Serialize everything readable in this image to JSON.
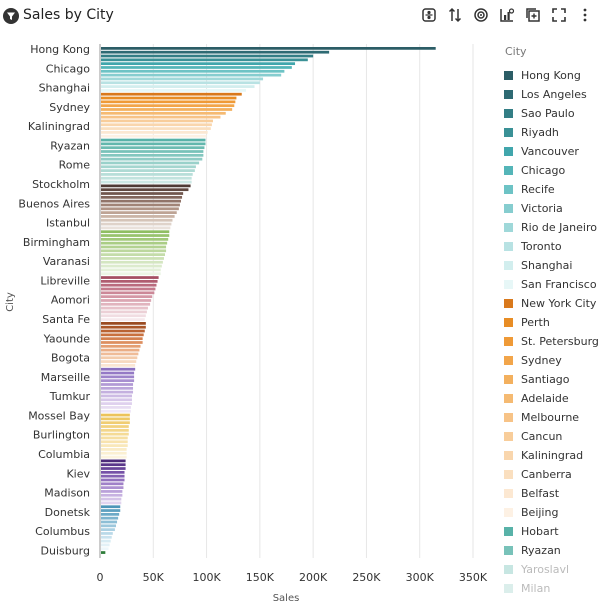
{
  "header": {
    "title": "Sales by City",
    "title_icon": "funnel-icon",
    "toolbar": [
      "filter-toggle-icon",
      "sort-icon",
      "target-icon",
      "chart-type-icon",
      "expand-icon",
      "fullscreen-icon",
      "more-icon"
    ]
  },
  "legend": {
    "title": "City",
    "items": [
      {
        "label": "Hong Kong",
        "color": "#2c5d66"
      },
      {
        "label": "Los Angeles",
        "color": "#2e6a73"
      },
      {
        "label": "Sao Paulo",
        "color": "#337e85"
      },
      {
        "label": "Riyadh",
        "color": "#3a9196"
      },
      {
        "label": "Vancouver",
        "color": "#41a6ac"
      },
      {
        "label": "Chicago",
        "color": "#54b5b8"
      },
      {
        "label": "Recife",
        "color": "#6dc3c5"
      },
      {
        "label": "Victoria",
        "color": "#86cdcf"
      },
      {
        "label": "Rio de Janeiro",
        "color": "#9fd8d9"
      },
      {
        "label": "Toronto",
        "color": "#b8e2e3"
      },
      {
        "label": "Shanghai",
        "color": "#d2eeee"
      },
      {
        "label": "San Francisco",
        "color": "#e7f7f7"
      },
      {
        "label": "New York City",
        "color": "#d9791c"
      },
      {
        "label": "Perth",
        "color": "#e88d25"
      },
      {
        "label": "St. Petersburg",
        "color": "#ef9a37"
      },
      {
        "label": "Sydney",
        "color": "#f2a54a"
      },
      {
        "label": "Santiago",
        "color": "#f3b05e"
      },
      {
        "label": "Adelaide",
        "color": "#f5ba72"
      },
      {
        "label": "Melbourne",
        "color": "#f7c387"
      },
      {
        "label": "Cancun",
        "color": "#f8cd9a"
      },
      {
        "label": "Kaliningrad",
        "color": "#f9d6ad"
      },
      {
        "label": "Canberra",
        "color": "#fadfbf"
      },
      {
        "label": "Belfast",
        "color": "#fce8d2"
      },
      {
        "label": "Beijing",
        "color": "#fdf1e4"
      },
      {
        "label": "Hobart",
        "color": "#58b2a8"
      },
      {
        "label": "Ryazan",
        "color": "#78c2b9"
      },
      {
        "label": "Yaroslavl",
        "color": "#99d1ca",
        "faded": true
      },
      {
        "label": "Milan",
        "color": "#bde0db",
        "faded": true
      }
    ]
  },
  "chart_data": {
    "type": "bar",
    "orientation": "horizontal",
    "title": "Sales by City",
    "xlabel": "Sales",
    "ylabel": "City",
    "xlim": [
      0,
      350000
    ],
    "x_ticks": [
      0,
      50000,
      100000,
      150000,
      200000,
      250000,
      300000,
      350000
    ],
    "x_tick_labels": [
      "0",
      "50K",
      "100K",
      "150K",
      "200K",
      "250K",
      "300K",
      "350K"
    ],
    "grid": true,
    "legend_position": "right",
    "visible_category_labels": [
      "Hong Kong",
      "Chicago",
      "Shanghai",
      "Sydney",
      "Kaliningrad",
      "Ryazan",
      "Rome",
      "Stockholm",
      "Buenos Aires",
      "Istanbul",
      "Birmingham",
      "Varanasi",
      "Libreville",
      "Aomori",
      "Santa Fe",
      "Yaounde",
      "Bogota",
      "Marseille",
      "Tumkur",
      "Mossel Bay",
      "Burlington",
      "Columbia",
      "Kiev",
      "Madison",
      "Donetsk",
      "Columbus",
      "Duisburg"
    ],
    "groups": [
      {
        "palette": [
          "#2c5d66",
          "#2e6a73",
          "#337e85",
          "#3a9196",
          "#41a6ac",
          "#54b5b8",
          "#6dc3c5",
          "#86cdcf",
          "#9fd8d9",
          "#b8e2e3",
          "#d2eeee",
          "#e7f7f7"
        ],
        "values": [
          315000,
          215000,
          200000,
          195000,
          183000,
          180000,
          173000,
          170000,
          153000,
          150000,
          145000,
          137000
        ]
      },
      {
        "palette": [
          "#d9791c",
          "#e88d25",
          "#ef9a37",
          "#f2a54a",
          "#f3b05e",
          "#f5ba72",
          "#f7c387",
          "#f8cd9a",
          "#f9d6ad",
          "#fadfbf",
          "#fce8d2",
          "#fdf1e4"
        ],
        "values": [
          133000,
          128000,
          127000,
          126000,
          124000,
          118000,
          113000,
          106000,
          105000,
          104000,
          101000,
          100000
        ]
      },
      {
        "palette": [
          "#58b2a8",
          "#62b7ad",
          "#6cbcb2",
          "#78c2b9",
          "#84c7bf",
          "#8fccc5",
          "#99d1ca",
          "#a4d6cf",
          "#aedad4",
          "#b7ded9",
          "#c1e3de",
          "#cce8e4"
        ],
        "values": [
          99000,
          99000,
          98000,
          97000,
          97000,
          96000,
          93000,
          90000,
          89000,
          87000,
          86000,
          86000
        ]
      },
      {
        "palette": [
          "#4e3a34",
          "#5f4840",
          "#70564d",
          "#81655b",
          "#917469",
          "#a18477",
          "#b09486",
          "#bea495",
          "#cab4a6",
          "#d5c4b8",
          "#dfd3ca",
          "#e9e1db"
        ],
        "values": [
          85000,
          83000,
          78000,
          77000,
          76000,
          75000,
          74000,
          72000,
          70000,
          68000,
          67000,
          66000
        ]
      },
      {
        "palette": [
          "#8fbe63",
          "#98c36e",
          "#a1c879",
          "#aacd85",
          "#b3d291",
          "#bcd79d",
          "#c4dca9",
          "#cce1b5",
          "#d4e6c1",
          "#dcebcd",
          "#e4f0d9",
          "#ecf5e5"
        ],
        "values": [
          65000,
          65000,
          64000,
          63000,
          62000,
          62000,
          61000,
          60000,
          59000,
          58000,
          57000,
          57000
        ]
      },
      {
        "palette": [
          "#a54f63",
          "#b05d70",
          "#ba6b7e",
          "#c4798b",
          "#cc8898",
          "#d497a5",
          "#dba6b2",
          "#e1b4be",
          "#e7c2ca",
          "#ecd0d6",
          "#f1dde2",
          "#f6e9ec"
        ],
        "values": [
          55000,
          54000,
          53000,
          52000,
          51000,
          49000,
          48000,
          47000,
          45000,
          44000,
          43000,
          42000
        ]
      },
      {
        "palette": [
          "#9a4b21",
          "#aa5628",
          "#ba6333",
          "#c9713f",
          "#d4804f",
          "#dd8f60",
          "#e49e72",
          "#eaad85",
          "#efbc98",
          "#f3cbab",
          "#f7d9bf",
          "#fae6d3"
        ],
        "values": [
          43000,
          43000,
          42000,
          41000,
          40000,
          40000,
          38000,
          37000,
          36000,
          35000,
          34000,
          33000
        ]
      },
      {
        "palette": [
          "#8a6fbf",
          "#9479c5",
          "#9e84cb",
          "#a88fd0",
          "#b29ad5",
          "#bba5da",
          "#c4b0df",
          "#cdbbe4",
          "#d6c6e9",
          "#dfd1ee",
          "#e7dcf2",
          "#efe7f7"
        ],
        "values": [
          33000,
          32000,
          32000,
          32000,
          31000,
          31000,
          31000,
          30000,
          30000,
          30000,
          29000,
          29000
        ]
      },
      {
        "palette": [
          "#ecc35b",
          "#eec866",
          "#f0cd72",
          "#f2d27e",
          "#f3d68a",
          "#f5db96",
          "#f6dfa2",
          "#f8e3ae",
          "#f9e8ba",
          "#faecc6",
          "#fbf0d2",
          "#fcf4de"
        ],
        "values": [
          28000,
          28000,
          28000,
          27000,
          27000,
          27000,
          26000,
          26000,
          26000,
          25000,
          25000,
          25000
        ]
      },
      {
        "palette": [
          "#4c2b7a",
          "#5a378a",
          "#684499",
          "#7652a7",
          "#8461b3",
          "#9271be",
          "#a081c8",
          "#ad91d1",
          "#ba a1d9",
          "#c7b2e1",
          "#d4c3e8",
          "#e1d4ef"
        ],
        "values": [
          24000,
          24000,
          24000,
          23000,
          23000,
          23000,
          22000,
          22000,
          21000,
          21000,
          20000,
          20000
        ]
      },
      {
        "palette": [
          "#4d96b8",
          "#5da0c0",
          "#6daac7",
          "#7db4ce",
          "#8dbed5",
          "#9cc7dc",
          "#abd0e2",
          "#bad9e8",
          "#c9e2ee",
          "#d7ebf3",
          "#e3f1f7",
          "#eef7fb"
        ],
        "values": [
          19000,
          19000,
          18000,
          17000,
          16000,
          15000,
          14000,
          12000,
          11000,
          10000,
          9000,
          8000
        ]
      },
      {
        "palette": [
          "#2f7d3a"
        ],
        "values": [
          5000
        ]
      }
    ]
  }
}
